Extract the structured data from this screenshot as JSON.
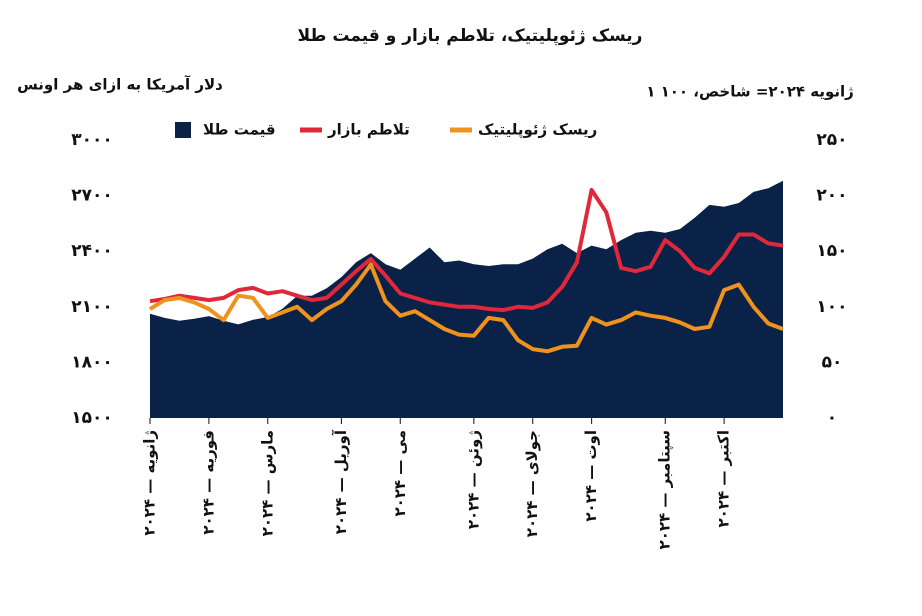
{
  "chart_data": {
    "type": "line",
    "title": "ریسک ژئوپلیتیک، تلاطم بازار و قیمت طلا",
    "y_label": "دلار آمریکا به ازای هر اونس",
    "y2_label": "۱ ژانویه ۲۰۲۴= شاخص، ۱۰۰",
    "categories": [
      "ژانویه — ۲۰۲۴",
      null,
      null,
      null,
      "فوریه — ۲۰۲۴",
      null,
      null,
      null,
      "مارس — ۲۰۲۴",
      null,
      null,
      null,
      null,
      "آوریل — ۲۰۲۴",
      null,
      null,
      null,
      "می — ۲۰۲۴",
      null,
      null,
      null,
      null,
      "ژوئن — ۲۰۲۴",
      null,
      null,
      null,
      "جولای — ۲۰۲۴",
      null,
      null,
      null,
      "اوت — ۲۰۲۴",
      null,
      null,
      null,
      null,
      "سپتامبر — ۲۰۲۴",
      null,
      null,
      null,
      "اکتبر — ۲۰۲۴",
      null,
      null,
      null,
      null
    ],
    "series": [
      {
        "name": "قیمت طلا",
        "kind": "area",
        "color": "#0b2248",
        "values": [
          2063,
          2040,
          2025,
          2035,
          2050,
          2025,
          2005,
          2030,
          2045,
          2090,
          2160,
          2160,
          2200,
          2260,
          2340,
          2390,
          2330,
          2300,
          2360,
          2420,
          2340,
          2350,
          2330,
          2320,
          2330,
          2330,
          2360,
          2410,
          2440,
          2390,
          2430,
          2410,
          2460,
          2500,
          2510,
          2500,
          2520,
          2580,
          2650,
          2640,
          2660,
          2720,
          2740,
          2780
        ]
      },
      {
        "name": "تلاطم بازار",
        "kind": "line",
        "axis": "y2",
        "color": "#e0283a",
        "values": [
          105,
          107,
          110,
          108,
          106,
          108,
          115,
          117,
          112,
          114,
          110,
          106,
          108,
          120,
          132,
          143,
          128,
          112,
          108,
          104,
          102,
          100,
          100,
          98,
          97,
          100,
          99,
          104,
          118,
          140,
          205,
          185,
          135,
          132,
          136,
          160,
          150,
          135,
          130,
          145,
          165,
          165,
          157,
          155
        ]
      },
      {
        "name": "ریسک ژئوپلیتیک",
        "kind": "line",
        "axis": "y2",
        "color": "#f0921e",
        "values": [
          98,
          106,
          108,
          104,
          98,
          88,
          110,
          108,
          90,
          95,
          100,
          88,
          98,
          105,
          120,
          138,
          105,
          92,
          96,
          88,
          80,
          75,
          74,
          90,
          88,
          70,
          62,
          60,
          64,
          65,
          90,
          84,
          88,
          95,
          92,
          90,
          86,
          80,
          82,
          115,
          120,
          100,
          85,
          80
        ]
      }
    ],
    "ylim": [
      1500,
      3000
    ],
    "yticks": [
      {
        "value": 1500,
        "label": "۱۵۰۰"
      },
      {
        "value": 1800,
        "label": "۱۸۰۰"
      },
      {
        "value": 2100,
        "label": "۲۱۰۰"
      },
      {
        "value": 2400,
        "label": "۲۴۰۰"
      },
      {
        "value": 2700,
        "label": "۲۷۰۰"
      },
      {
        "value": 3000,
        "label": "۳۰۰۰"
      }
    ],
    "y2lim": [
      0,
      250
    ],
    "y2ticks": [
      {
        "value": 0,
        "label": "۰"
      },
      {
        "value": 50,
        "label": "۵۰"
      },
      {
        "value": 100,
        "label": "۱۰۰"
      },
      {
        "value": 150,
        "label": "۱۵۰"
      },
      {
        "value": 200,
        "label": "۲۰۰"
      },
      {
        "value": 250,
        "label": "۲۵۰"
      }
    ],
    "grid": false
  }
}
